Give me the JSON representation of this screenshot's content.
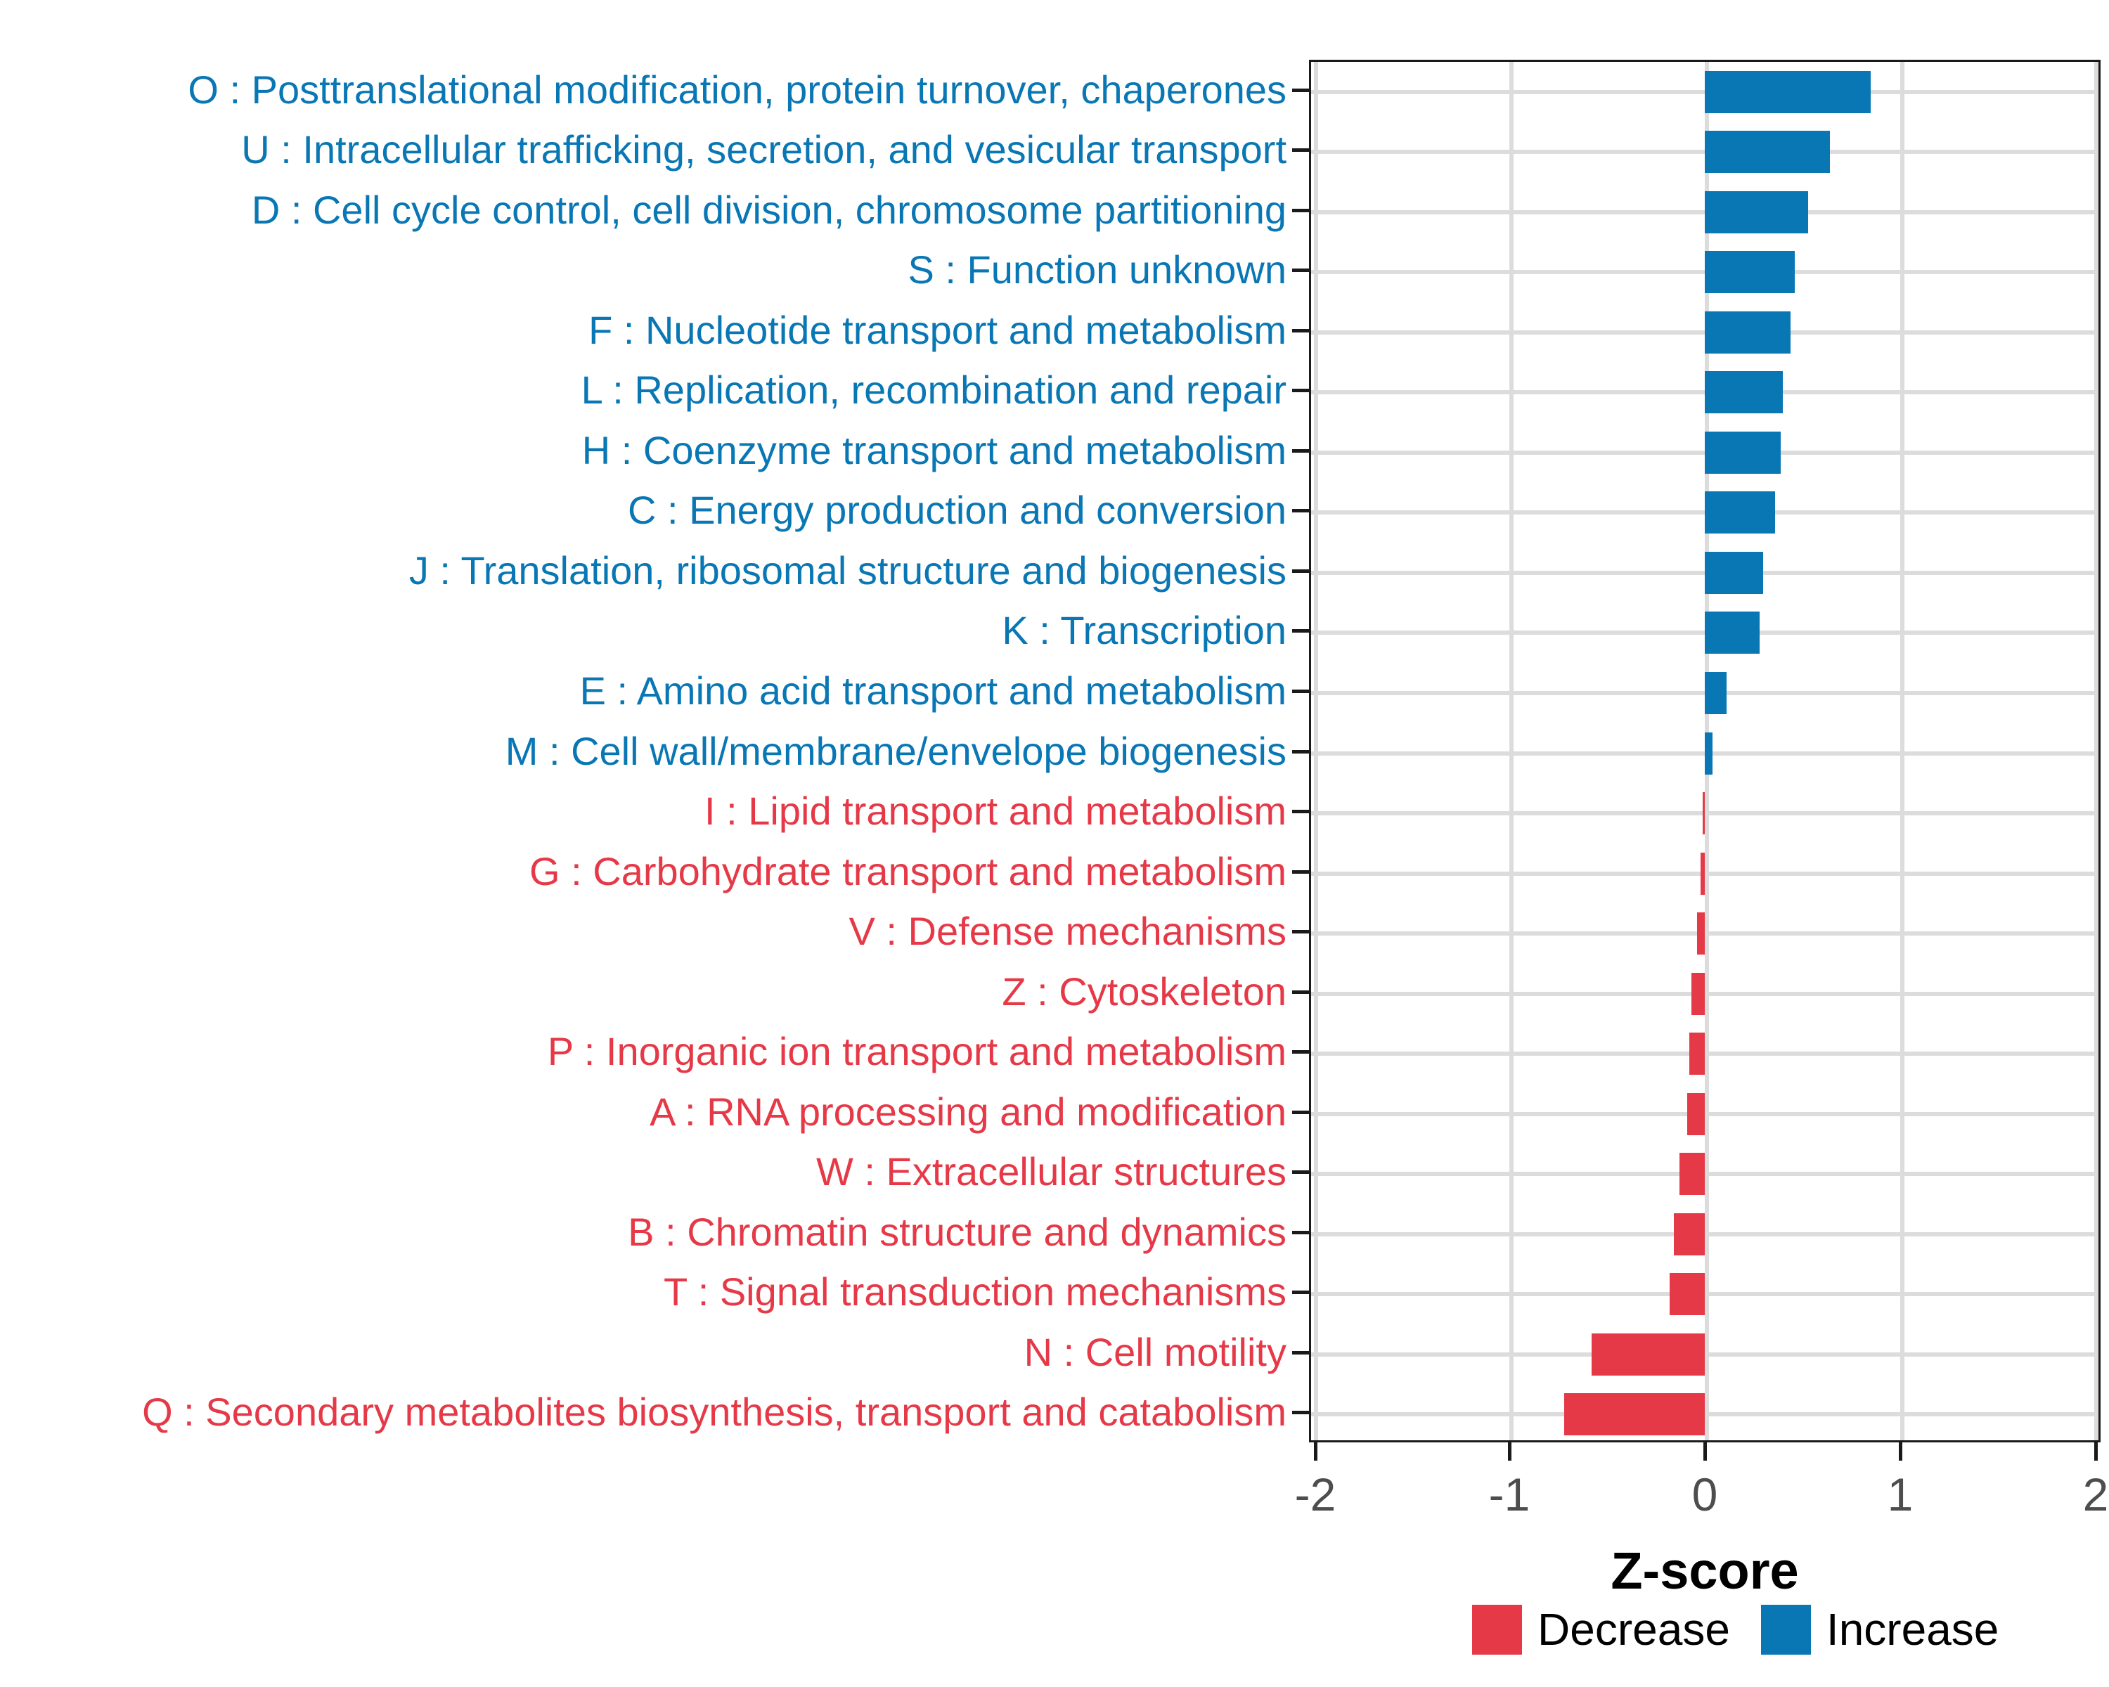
{
  "chart_data": {
    "type": "bar",
    "orientation": "horizontal",
    "title": "",
    "xlabel": "Z-score",
    "ylabel": "",
    "xlim": [
      -2.05,
      2.05
    ],
    "x_ticks": [
      -2,
      -1,
      0,
      1,
      2
    ],
    "grid": "major gridlines on both axes, light gray, panel framed in black",
    "bar_colors": {
      "increase": "#0A77B5",
      "decrease": "#E63948"
    },
    "legend": {
      "position": "bottom-right",
      "entries": [
        {
          "label": "Decrease",
          "color": "#E63948"
        },
        {
          "label": "Increase",
          "color": "#0A77B5"
        }
      ]
    },
    "categories": [
      {
        "label": "O : Posttranslational modification, protein turnover, chaperones",
        "value": 0.85,
        "group": "increase"
      },
      {
        "label": "U : Intracellular trafficking, secretion, and vesicular transport",
        "value": 0.64,
        "group": "increase"
      },
      {
        "label": "D : Cell cycle control, cell division, chromosome partitioning",
        "value": 0.53,
        "group": "increase"
      },
      {
        "label": "S : Function unknown",
        "value": 0.46,
        "group": "increase"
      },
      {
        "label": "F : Nucleotide transport and metabolism",
        "value": 0.44,
        "group": "increase"
      },
      {
        "label": "L : Replication, recombination and repair",
        "value": 0.4,
        "group": "increase"
      },
      {
        "label": "H : Coenzyme transport and metabolism",
        "value": 0.39,
        "group": "increase"
      },
      {
        "label": "C : Energy production and conversion",
        "value": 0.36,
        "group": "increase"
      },
      {
        "label": "J : Translation, ribosomal structure and biogenesis",
        "value": 0.3,
        "group": "increase"
      },
      {
        "label": "K : Transcription",
        "value": 0.28,
        "group": "increase"
      },
      {
        "label": "E : Amino acid transport and metabolism",
        "value": 0.11,
        "group": "increase"
      },
      {
        "label": "M : Cell wall/membrane/envelope biogenesis",
        "value": 0.04,
        "group": "increase"
      },
      {
        "label": "I : Lipid transport and metabolism",
        "value": -0.01,
        "group": "decrease"
      },
      {
        "label": "G : Carbohydrate transport and metabolism",
        "value": -0.02,
        "group": "decrease"
      },
      {
        "label": "V : Defense mechanisms",
        "value": -0.04,
        "group": "decrease"
      },
      {
        "label": "Z : Cytoskeleton",
        "value": -0.07,
        "group": "decrease"
      },
      {
        "label": "P : Inorganic ion transport and metabolism",
        "value": -0.08,
        "group": "decrease"
      },
      {
        "label": "A : RNA processing and modification",
        "value": -0.09,
        "group": "decrease"
      },
      {
        "label": "W : Extracellular structures",
        "value": -0.13,
        "group": "decrease"
      },
      {
        "label": "B : Chromatin structure and dynamics",
        "value": -0.16,
        "group": "decrease"
      },
      {
        "label": "T : Signal transduction mechanisms",
        "value": -0.18,
        "group": "decrease"
      },
      {
        "label": "N : Cell motility",
        "value": -0.58,
        "group": "decrease"
      },
      {
        "label": "Q : Secondary metabolites biosynthesis, transport and catabolism",
        "value": -0.72,
        "group": "decrease"
      }
    ]
  },
  "axis_style": {
    "tick_label_color": "#4d4d4d",
    "gridline_color": "#dcdcdc",
    "panel_border_color": "#1a1a1a"
  }
}
